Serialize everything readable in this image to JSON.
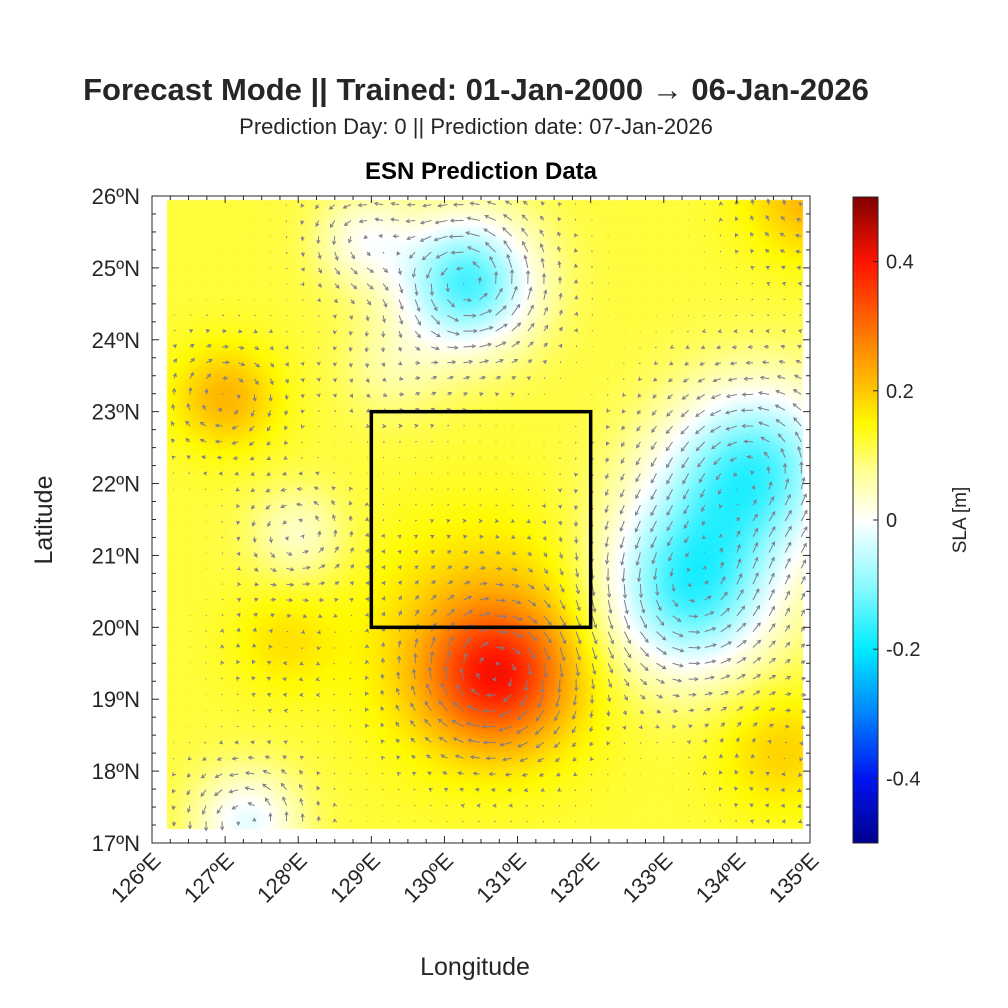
{
  "title": "Forecast Mode || Trained: 01-Jan-2000 → 06-Jan-2026",
  "subtitle": "Prediction Day: 0 || Prediction date: 07-Jan-2026",
  "chart_data": {
    "type": "heatmap",
    "title": "ESN Prediction Data",
    "xlabel": "Longitude",
    "ylabel": "Latitude",
    "xlim": [
      126,
      135
    ],
    "ylim": [
      17,
      26
    ],
    "xticks": [
      "126ºE",
      "127ºE",
      "128ºE",
      "129ºE",
      "130ºE",
      "131ºE",
      "132ºE",
      "133ºE",
      "134ºE",
      "135ºE"
    ],
    "yticks": [
      "17ºN",
      "18ºN",
      "19ºN",
      "20ºN",
      "21ºN",
      "22ºN",
      "23ºN",
      "24ºN",
      "25ºN",
      "26ºN"
    ],
    "data_extent": {
      "lon": [
        126.2,
        134.9
      ],
      "lat": [
        17.2,
        25.95
      ]
    },
    "background_sla": 0.12,
    "features": [
      {
        "name": "cyclonic eddy",
        "lon": 130.3,
        "lat": 24.8,
        "amp": -0.27,
        "sigma": 0.65
      },
      {
        "name": "cyclonic region south",
        "lon": 133.3,
        "lat": 20.4,
        "amp": -0.22,
        "sigma": 0.8
      },
      {
        "name": "cyclonic region north",
        "lon": 134.3,
        "lat": 22.3,
        "amp": -0.22,
        "sigma": 0.8
      },
      {
        "name": "cyclonic region mid",
        "lon": 133.6,
        "lat": 21.4,
        "amp": -0.12,
        "sigma": 0.9
      },
      {
        "name": "anticyclone",
        "lon": 130.7,
        "lat": 19.3,
        "amp": 0.2,
        "sigma": 0.65
      },
      {
        "name": "warm tongue",
        "lon": 130.6,
        "lat": 19.8,
        "amp": 0.1,
        "sigma": 1.1
      },
      {
        "name": "warm west",
        "lon": 127.0,
        "lat": 23.2,
        "amp": 0.1,
        "sigma": 0.5
      },
      {
        "name": "warm southwest",
        "lon": 127.8,
        "lat": 19.8,
        "amp": 0.05,
        "sigma": 0.5
      },
      {
        "name": "low southwest",
        "lon": 127.3,
        "lat": 17.3,
        "amp": -0.14,
        "sigma": 0.5
      },
      {
        "name": "low west mid",
        "lon": 128.0,
        "lat": 21.3,
        "amp": -0.08,
        "sigma": 0.45
      },
      {
        "name": "low north",
        "lon": 128.9,
        "lat": 25.4,
        "amp": -0.1,
        "sigma": 0.45
      },
      {
        "name": "low band",
        "lon": 129.3,
        "lat": 23.6,
        "amp": -0.05,
        "sigma": 0.5
      },
      {
        "name": "warm southeast",
        "lon": 134.6,
        "lat": 18.3,
        "amp": 0.07,
        "sigma": 0.6
      },
      {
        "name": "warm northeast",
        "lon": 135.0,
        "lat": 26.0,
        "amp": 0.1,
        "sigma": 0.6
      }
    ],
    "region_box": {
      "lon": [
        129,
        132
      ],
      "lat": [
        20,
        23
      ]
    },
    "colorbar": {
      "label": "SLA [m]",
      "range": [
        -0.5,
        0.5
      ],
      "ticks": [
        "-0.4",
        "-0.2",
        "0",
        "0.2",
        "0.4"
      ],
      "colormap": "jet-white-centered"
    },
    "vectors": "geostrophic velocity (quiver, gray)"
  }
}
